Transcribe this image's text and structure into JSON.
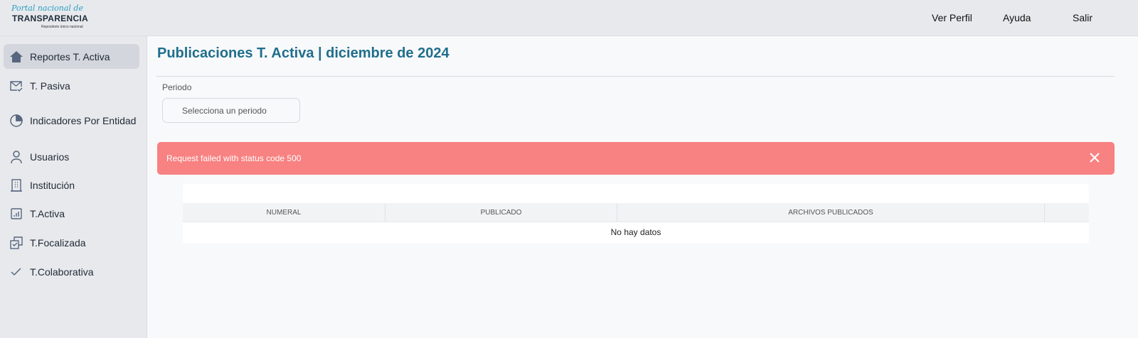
{
  "header": {
    "logo": {
      "script": "Portal nacional de",
      "main": "TRANSPARENCIA",
      "sub": "Repositorio único nacional"
    },
    "nav": [
      "Ver Perfil",
      "Ayuda",
      "Salir"
    ]
  },
  "sidebar": {
    "items": [
      {
        "label": "Reportes T. Activa",
        "icon": "home-icon",
        "active": true
      },
      {
        "label": "T. Pasiva",
        "icon": "mail-check-icon"
      },
      {
        "label": "Indicadores Por Entidad",
        "icon": "pie-chart-icon"
      },
      {
        "label": "Usuarios",
        "icon": "user-icon"
      },
      {
        "label": "Institución",
        "icon": "building-icon"
      },
      {
        "label": "T.Activa",
        "icon": "bar-chart-icon"
      },
      {
        "label": "T.Focalizada",
        "icon": "copy-check-icon"
      },
      {
        "label": "T.Colaborativa",
        "icon": "check-icon"
      }
    ]
  },
  "main": {
    "title": "Publicaciones T. Activa | diciembre de 2024",
    "period_label": "Periodo",
    "period_placeholder": "Selecciona un periodo",
    "alert": {
      "message": "Request failed with status code 500",
      "color": "#f88181"
    },
    "table": {
      "columns": [
        "NUMERAL",
        "PUBLICADO",
        "ARCHIVOS PUBLICADOS",
        ""
      ],
      "empty": "No hay datos"
    }
  },
  "colors": {
    "accent": "#1f6f8b"
  }
}
